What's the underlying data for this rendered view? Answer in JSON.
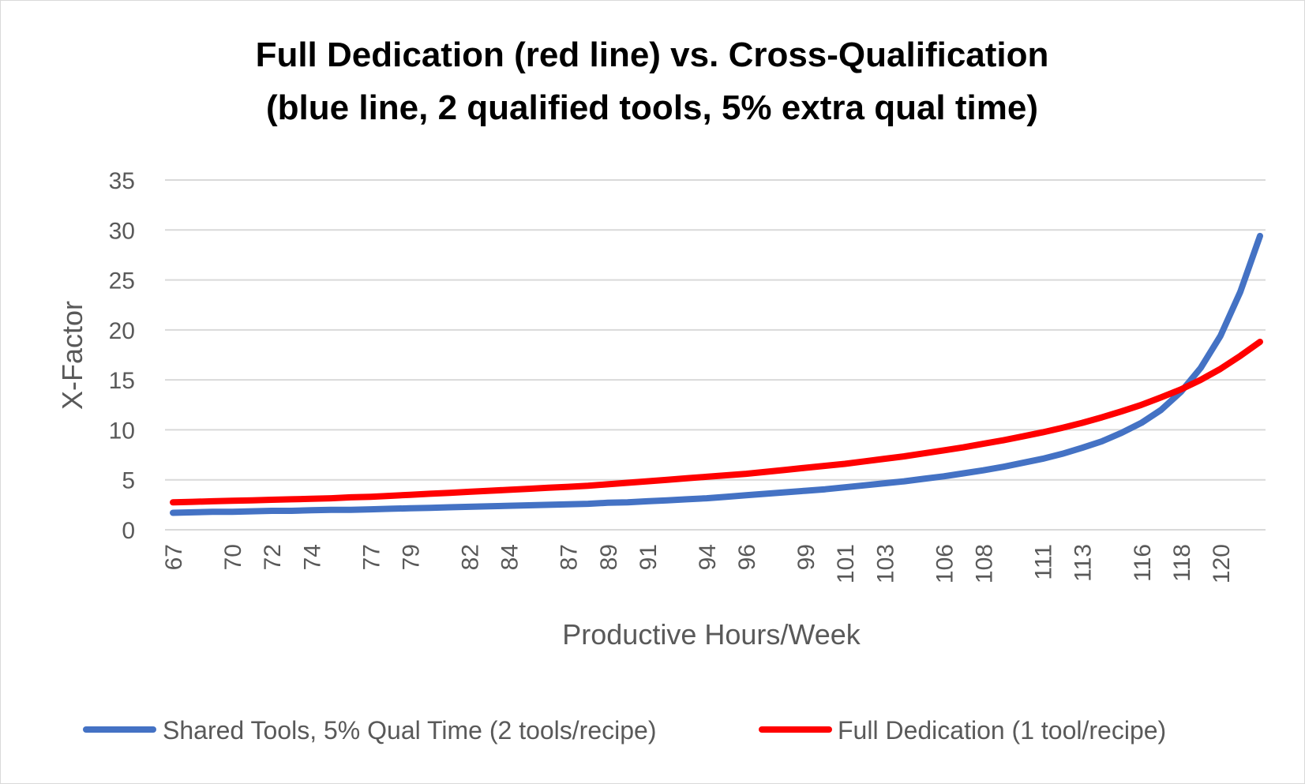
{
  "chart_data": {
    "type": "line",
    "title_lines": [
      "Full Dedication (red line) vs. Cross-Qualification",
      "(blue line, 2 qualified tools, 5% extra qual time)"
    ],
    "xlabel": "Productive Hours/Week",
    "ylabel": "X-Factor",
    "ylim": [
      0,
      35
    ],
    "yticks": [
      0,
      5,
      10,
      15,
      20,
      25,
      30,
      35
    ],
    "grid": true,
    "legend_position": "bottom",
    "x": [
      67,
      68,
      69,
      70,
      71,
      72,
      73,
      74,
      75,
      76,
      77,
      78,
      79,
      80,
      81,
      82,
      83,
      84,
      85,
      86,
      87,
      88,
      89,
      90,
      91,
      92,
      93,
      94,
      95,
      96,
      97,
      98,
      99,
      100,
      101,
      102,
      103,
      104,
      105,
      106,
      107,
      108,
      109,
      110,
      111,
      112,
      113,
      114,
      115,
      116,
      117,
      118,
      119,
      120,
      121,
      122
    ],
    "x_tick_labels": [
      "67",
      "70",
      "72",
      "74",
      "77",
      "79",
      "82",
      "84",
      "87",
      "89",
      "91",
      "94",
      "96",
      "99",
      "101",
      "103",
      "106",
      "108",
      "111",
      "113",
      "116",
      "118",
      "120"
    ],
    "x_tick_label_positions": [
      67,
      70,
      72,
      74,
      77,
      79,
      82,
      84,
      87,
      89,
      91,
      94,
      96,
      99,
      101,
      103,
      106,
      108,
      111,
      113,
      116,
      118,
      120
    ],
    "series": [
      {
        "name": "Shared Tools, 5% Qual Time (2 tools/recipe)",
        "color": "#4472C4",
        "values": [
          1.7,
          1.75,
          1.8,
          1.8,
          1.85,
          1.9,
          1.9,
          1.95,
          2.0,
          2.0,
          2.05,
          2.1,
          2.15,
          2.2,
          2.25,
          2.3,
          2.35,
          2.4,
          2.45,
          2.5,
          2.55,
          2.6,
          2.7,
          2.75,
          2.85,
          2.95,
          3.05,
          3.15,
          3.3,
          3.45,
          3.6,
          3.75,
          3.9,
          4.05,
          4.25,
          4.45,
          4.65,
          4.85,
          5.1,
          5.35,
          5.65,
          5.95,
          6.3,
          6.7,
          7.1,
          7.6,
          8.2,
          8.85,
          9.7,
          10.7,
          12.0,
          13.8,
          16.2,
          19.4,
          23.8,
          29.4
        ]
      },
      {
        "name": "Full Dedication (1 tool/recipe)",
        "color": "#FF0000",
        "values": [
          2.75,
          2.8,
          2.85,
          2.9,
          2.95,
          3.0,
          3.05,
          3.1,
          3.15,
          3.25,
          3.3,
          3.4,
          3.5,
          3.6,
          3.7,
          3.8,
          3.9,
          4.0,
          4.1,
          4.2,
          4.3,
          4.4,
          4.55,
          4.7,
          4.85,
          5.0,
          5.15,
          5.3,
          5.45,
          5.6,
          5.8,
          6.0,
          6.2,
          6.4,
          6.6,
          6.85,
          7.1,
          7.35,
          7.65,
          7.95,
          8.25,
          8.6,
          8.95,
          9.35,
          9.75,
          10.2,
          10.7,
          11.25,
          11.85,
          12.5,
          13.25,
          14.05,
          15.0,
          16.1,
          17.4,
          18.8
        ]
      }
    ]
  }
}
